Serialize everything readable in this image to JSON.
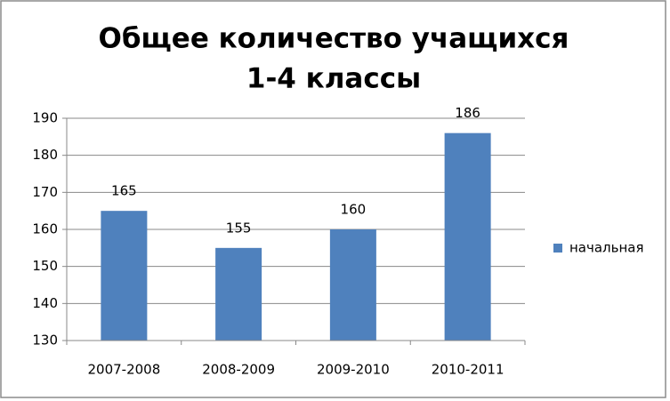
{
  "chart_data": {
    "type": "bar",
    "title": [
      "Общее количество учащихся",
      "1-4 классы"
    ],
    "categories": [
      "2007-2008",
      "2008-2009",
      "2009-2010",
      "2010-2011"
    ],
    "series": [
      {
        "name": "начальная",
        "color": "#4f81bd",
        "values": [
          165,
          155,
          160,
          186
        ]
      }
    ],
    "ylim": [
      130,
      190
    ],
    "yticks": [
      130,
      140,
      150,
      160,
      170,
      180,
      190
    ],
    "grid": true,
    "legend": "right"
  }
}
